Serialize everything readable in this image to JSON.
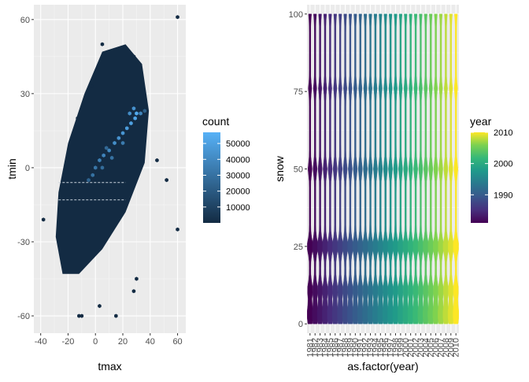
{
  "colors": {
    "panel_bg": "#EBEBEB",
    "grid_major": "#FFFFFF",
    "grid_minor": "#F5F5F5",
    "count_low": "#132B43",
    "count_high": "#56B1F7",
    "viridis": [
      "#440154",
      "#472F7D",
      "#39568C",
      "#2A788E",
      "#1F988B",
      "#35B779",
      "#7AD151",
      "#FDE725"
    ]
  },
  "chart_data": [
    {
      "type": "hexbin",
      "xlabel": "tmax",
      "ylabel": "tmin",
      "xlim": [
        -45,
        66
      ],
      "ylim": [
        -67,
        66
      ],
      "x_ticks": [
        -40,
        -20,
        0,
        20,
        40,
        60
      ],
      "x_tick_labels": [
        "-40",
        "-20",
        "0",
        "20",
        "40",
        "60"
      ],
      "y_ticks": [
        -60,
        -30,
        0,
        30,
        60
      ],
      "y_tick_labels": [
        "-60",
        "-30",
        "0",
        "30",
        "60"
      ],
      "grid": true,
      "legend": {
        "title": "count",
        "position": "right",
        "range": [
          1,
          57000
        ],
        "breaks": [
          10000,
          20000,
          30000,
          40000,
          50000
        ],
        "labels": [
          "10000",
          "20000",
          "30000",
          "40000",
          "50000"
        ]
      },
      "hexbins": [
        {
          "x": 0,
          "y": 0,
          "count": 32000
        },
        {
          "x": 3,
          "y": 3,
          "count": 36000
        },
        {
          "x": 6,
          "y": 5,
          "count": 38000
        },
        {
          "x": 10,
          "y": 7,
          "count": 40000
        },
        {
          "x": 14,
          "y": 10,
          "count": 42000
        },
        {
          "x": 17,
          "y": 12,
          "count": 44000
        },
        {
          "x": 20,
          "y": 14,
          "count": 46000
        },
        {
          "x": 23,
          "y": 16,
          "count": 48000
        },
        {
          "x": 26,
          "y": 18,
          "count": 50000
        },
        {
          "x": 29,
          "y": 20,
          "count": 52000
        },
        {
          "x": 30,
          "y": 22,
          "count": 54000
        },
        {
          "x": 28,
          "y": 24,
          "count": 44000
        },
        {
          "x": 25,
          "y": 22,
          "count": 42000
        },
        {
          "x": 33,
          "y": 22,
          "count": 38000
        },
        {
          "x": 20,
          "y": 10,
          "count": 34000
        },
        {
          "x": 12,
          "y": 4,
          "count": 30000
        },
        {
          "x": -2,
          "y": -3,
          "count": 30000
        },
        {
          "x": 5,
          "y": 0,
          "count": 28000
        },
        {
          "x": 8,
          "y": 8,
          "count": 26000
        },
        {
          "x": -5,
          "y": -5,
          "count": 24000
        },
        {
          "x": 36,
          "y": 23,
          "count": 22000
        }
      ],
      "outliers": [
        {
          "x": 60,
          "y": 61
        },
        {
          "x": 5,
          "y": 50
        },
        {
          "x": 60,
          "y": -25
        },
        {
          "x": -38,
          "y": -21
        },
        {
          "x": 15,
          "y": -60
        },
        {
          "x": 3,
          "y": -56
        },
        {
          "x": -12,
          "y": -60
        },
        {
          "x": -10,
          "y": -60
        },
        {
          "x": 30,
          "y": -45
        },
        {
          "x": 28,
          "y": -50
        },
        {
          "x": 45,
          "y": 3
        },
        {
          "x": 52,
          "y": -5
        },
        {
          "x": -13,
          "y": 20
        },
        {
          "x": 28,
          "y": 45
        },
        {
          "x": -3,
          "y": 33
        }
      ]
    },
    {
      "type": "violin",
      "xlabel": "as.factor(year)",
      "ylabel": "snow",
      "ylim": [
        -3,
        103
      ],
      "y_ticks": [
        0,
        25,
        50,
        75,
        100
      ],
      "y_tick_labels": [
        "0",
        "25",
        "50",
        "75",
        "100"
      ],
      "categories": [
        "1981",
        "1982",
        "1983",
        "1984",
        "1985",
        "1986",
        "1987",
        "1988",
        "1989",
        "1990",
        "1991",
        "1992",
        "1993",
        "1994",
        "1995",
        "1996",
        "1997",
        "1998",
        "1999",
        "2000",
        "2001",
        "2002",
        "2003",
        "2004",
        "2005",
        "2006",
        "2007",
        "2008",
        "2009",
        "2010"
      ],
      "grid": true,
      "legend": {
        "title": "year",
        "position": "right",
        "range": [
          1981,
          2010
        ],
        "breaks": [
          1990,
          2000,
          2010
        ],
        "labels": [
          "1990",
          "2000",
          "2010"
        ]
      }
    }
  ]
}
